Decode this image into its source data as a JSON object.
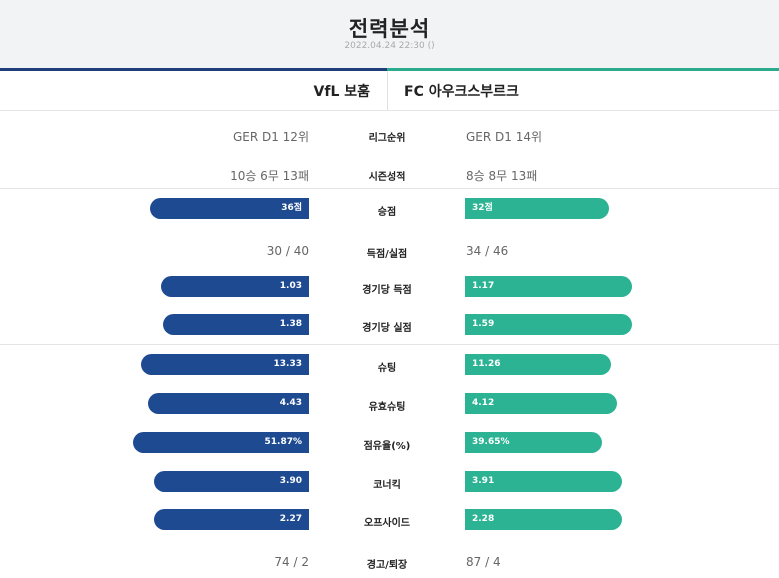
{
  "header": {
    "title": "전력분석",
    "subtitle": "2022.04.24 22:30 ()"
  },
  "teams": {
    "home": "VfL 보훔",
    "away": "FC 아우크스부르크"
  },
  "text_rows": [
    {
      "label": "리그순위",
      "home": "GER D1 12위",
      "away": "GER D1 14위"
    },
    {
      "label": "시즌성적",
      "home": "10승 6무 13패",
      "away": "8승 8무 13패"
    }
  ],
  "stats": [
    {
      "type": "bar",
      "label": "승점",
      "home": "36점",
      "away": "32점",
      "home_fill": 0.86,
      "away_fill": 0.78
    },
    {
      "type": "text",
      "label": "득점/실점",
      "home": "30 / 40",
      "away": "34 / 46"
    },
    {
      "type": "bar",
      "label": "경기당 득점",
      "home": "1.03",
      "away": "1.17",
      "home_fill": 0.8,
      "away_fill": 0.9
    },
    {
      "type": "bar",
      "label": "경기당 실점",
      "home": "1.38",
      "away": "1.59",
      "home_fill": 0.79,
      "away_fill": 0.9
    },
    {
      "type": "bar",
      "label": "슈팅",
      "home": "13.33",
      "away": "11.26",
      "home_fill": 0.91,
      "away_fill": 0.79
    },
    {
      "type": "bar",
      "label": "유효슈팅",
      "home": "4.43",
      "away": "4.12",
      "home_fill": 0.87,
      "away_fill": 0.82
    },
    {
      "type": "bar",
      "label": "점유율(%)",
      "home": "51.87%",
      "away": "39.65%",
      "home_fill": 0.95,
      "away_fill": 0.74
    },
    {
      "type": "bar",
      "label": "코너킥",
      "home": "3.90",
      "away": "3.91",
      "home_fill": 0.84,
      "away_fill": 0.85
    },
    {
      "type": "bar",
      "label": "오프사이드",
      "home": "2.27",
      "away": "2.28",
      "home_fill": 0.84,
      "away_fill": 0.85
    },
    {
      "type": "text",
      "label": "경고/퇴장",
      "home": "74 / 2",
      "away": "87 / 4"
    }
  ],
  "colors": {
    "home_bar": "#1e4a91",
    "away_bar": "#2bb393",
    "header_bg": "#f2f3f5"
  }
}
